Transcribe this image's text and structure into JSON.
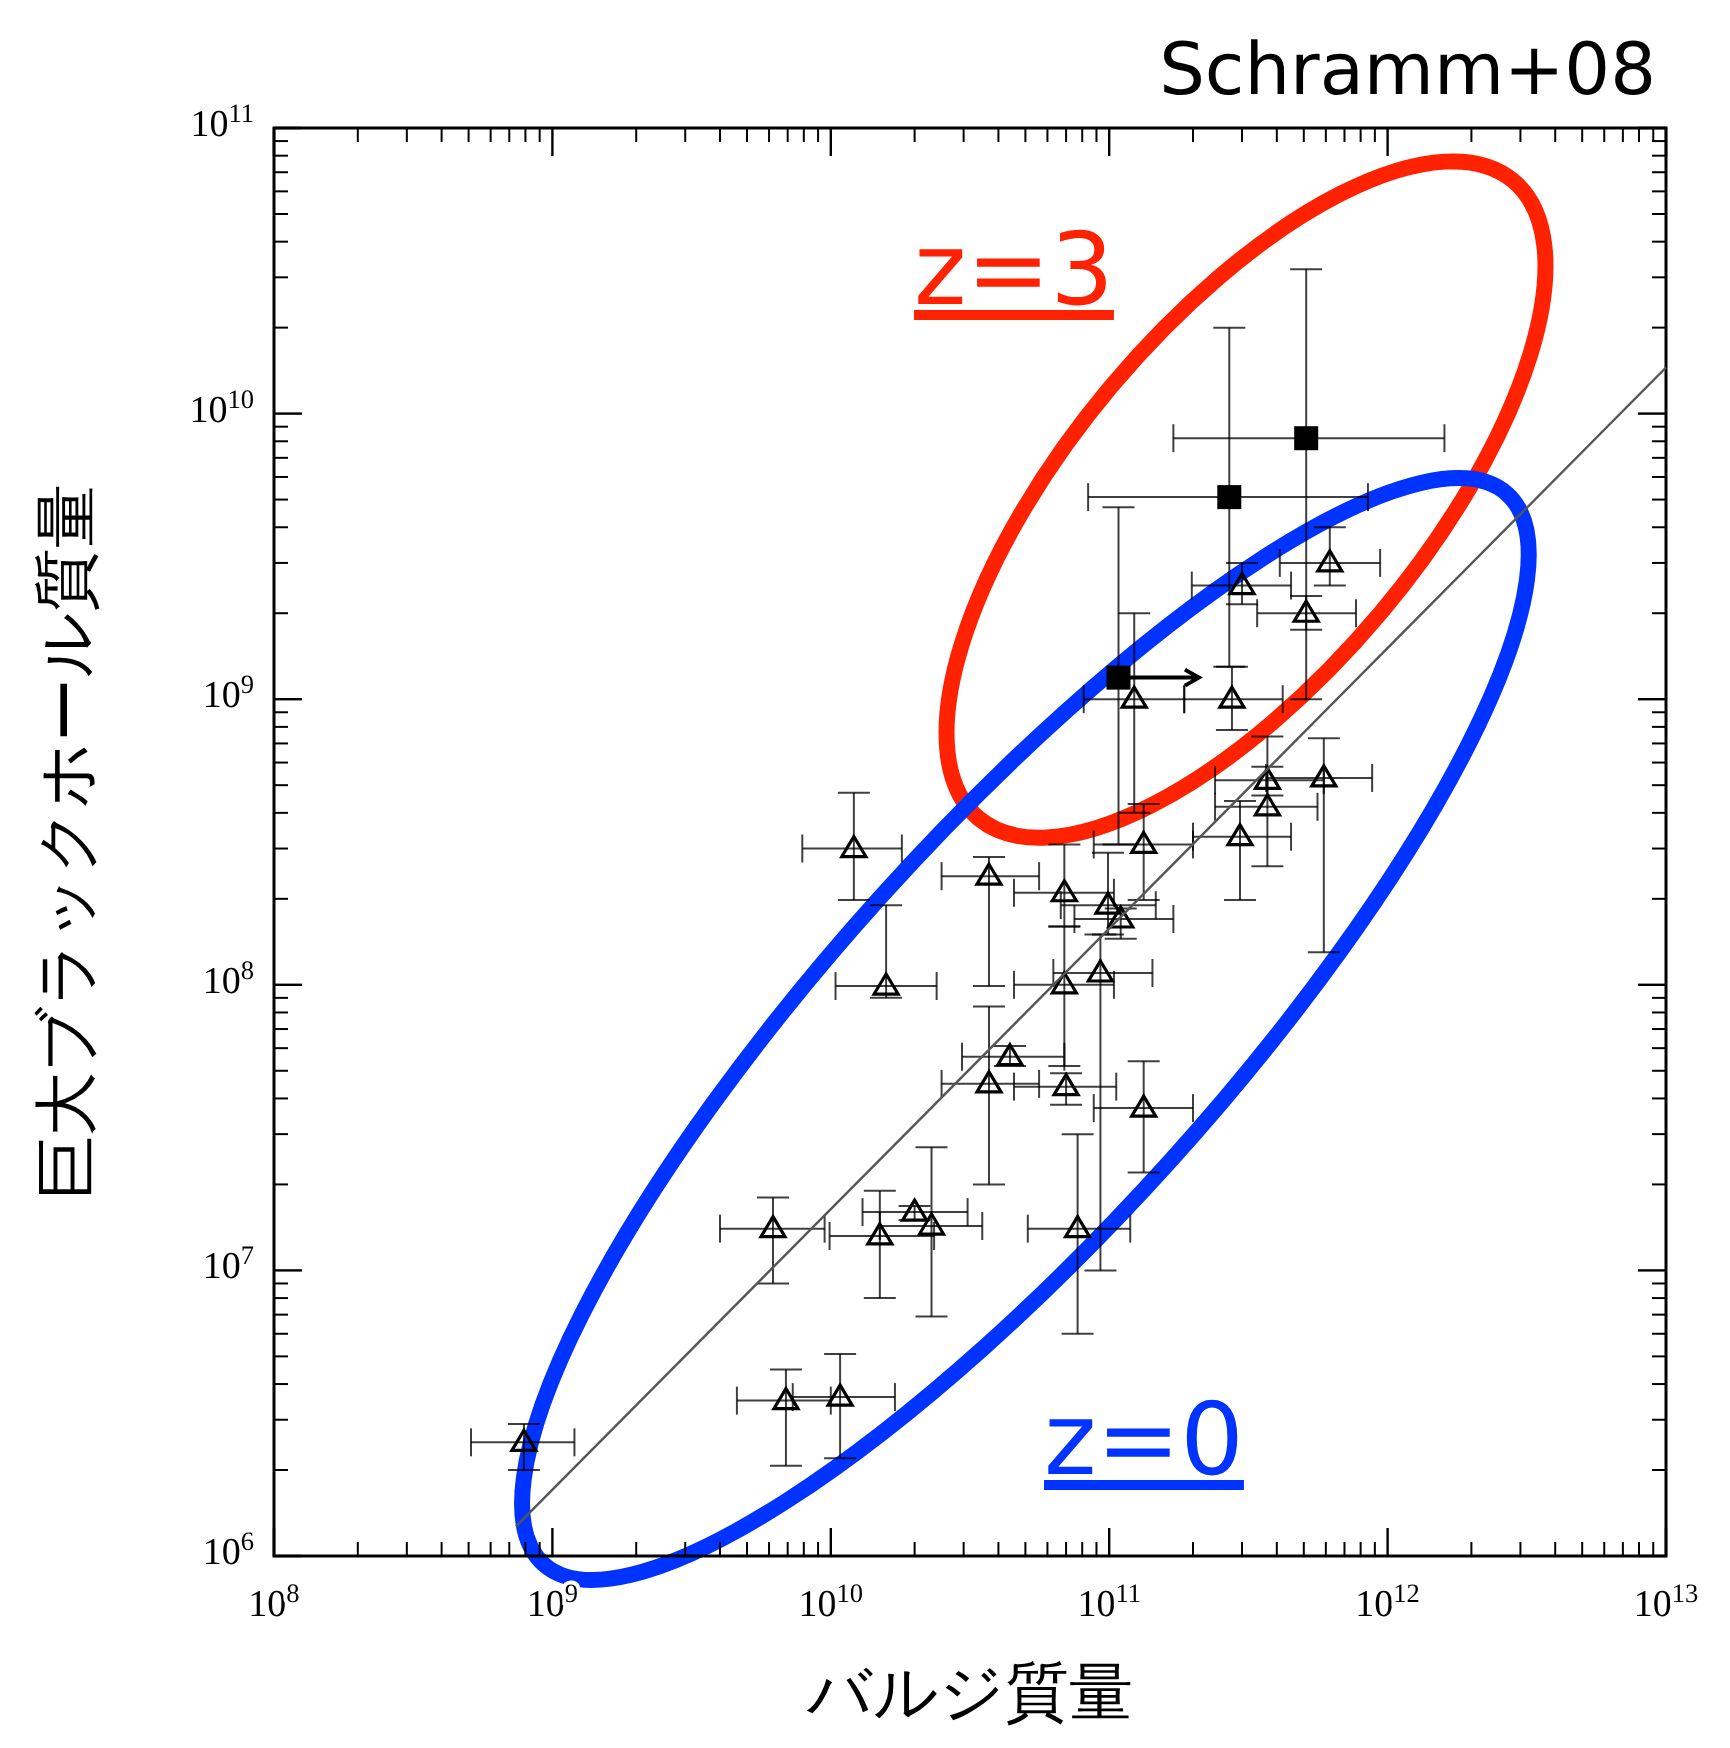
{
  "chart_data": {
    "type": "scatter",
    "title": "Schramm+08",
    "xlabel": "バルジ質量",
    "ylabel": "巨大ブラックホール質量",
    "log": "xy",
    "xlim": [
      100000000.0,
      10000000000000.0
    ],
    "ylim": [
      1000000.0,
      100000000000.0
    ],
    "xticks": [
      {
        "value": 100000000.0,
        "label": "10$^{8}$"
      },
      {
        "value": 1000000000.0,
        "label": "10$^{9}$"
      },
      {
        "value": 10000000000.0,
        "label": "10$^{10}$"
      },
      {
        "value": 100000000000.0,
        "label": "10$^{11}$"
      },
      {
        "value": 1000000000000.0,
        "label": "10$^{12}$"
      },
      {
        "value": 10000000000000.0,
        "label": "10$^{13}$"
      }
    ],
    "yticks": [
      {
        "value": 1000000.0,
        "label": "10$^{6}$"
      },
      {
        "value": 10000000.0,
        "label": "10$^{7}$"
      },
      {
        "value": 100000000.0,
        "label": "10$^{8}$"
      },
      {
        "value": 1000000000.0,
        "label": "10$^{9}$"
      },
      {
        "value": 10000000000.0,
        "label": "10$^{10}$"
      },
      {
        "value": 100000000000.0,
        "label": "10$^{11}$"
      }
    ],
    "annotations": [
      "z=3",
      "z=0"
    ],
    "series": [
      {
        "type": "scatter",
        "marker": "triangle",
        "color": "#000000",
        "x": [
          300000000000.0,
          510000000000.0,
          620000000000.0,
          276000000000.0,
          123000000000.0,
          370000000000.0,
          590000000000.0,
          370000000000.0,
          295000000000.0,
          133000000000.0,
          12100000000.0,
          37000000000.0,
          69000000000.0,
          99000000000.0,
          110000000000.0,
          69000000000.0,
          93000000000.0,
          15800000000.0,
          44000000000.0,
          37000000000.0,
          70000000000.0,
          133000000000.0,
          6200000000.0,
          20000000000.0,
          15000000000.0,
          23000000000.0,
          77000000000.0,
          6900000000.0,
          10800000000.0,
          790000000.0
        ],
        "values": [
          2500000000.0,
          2000000000.0,
          3000000000.0,
          1000000000.0,
          1000000000.0,
          520000000.0,
          530000000.0,
          420000000.0,
          330000000.0,
          310000000.0,
          300000000.0,
          240000000.0,
          210000000.0,
          190000000.0,
          170000000.0,
          100000000.0,
          110000000.0,
          99000000.0,
          56000000.0,
          45000000.0,
          44000000.0,
          37000000.0,
          14000000.0,
          16000000.0,
          13200000.0,
          14300000.0,
          14000000.0,
          3500000.0,
          3600000.0,
          2500000.0
        ],
        "xerrors": [
          [
            198000000000.0,
            450000000000.0
          ],
          [
            340000000000.0,
            770000000000.0
          ],
          [
            410000000000.0,
            940000000000.0
          ],
          [
            186000000000.0,
            420000000000.0
          ],
          [
            81000000000.0,
            186000000000.0
          ],
          [
            240000000000.0,
            590000000000.0
          ],
          [
            366000000000.0,
            880000000000.0
          ],
          [
            240000000000.0,
            560000000000.0
          ],
          [
            200000000000.0,
            450000000000.0
          ],
          [
            88000000000.0,
            200000000000.0
          ],
          [
            7900000000.0,
            18000000000.0
          ],
          [
            25000000000.0,
            56000000000.0
          ],
          [
            45500000000.0,
            104000000000.0
          ],
          [
            67000000000.0,
            147000000000.0
          ],
          [
            75000000000.0,
            170000000000.0
          ],
          [
            45500000000.0,
            104000000000.0
          ],
          [
            63000000000.0,
            143000000000.0
          ],
          [
            10400000000.0,
            24000000000.0
          ],
          [
            29600000000.0,
            69000000000.0
          ],
          [
            25000000000.0,
            56000000000.0
          ],
          [
            45500000000.0,
            106000000000.0
          ],
          [
            88000000000.0,
            200000000000.0
          ],
          [
            4000000000.0,
            9500000000.0
          ],
          [
            13000000000.0,
            31000000000.0
          ],
          [
            9900000000.0,
            23500000000.0
          ],
          [
            15000000000.0,
            35000000000.0
          ],
          [
            51000000000.0,
            119000000000.0
          ],
          [
            4600000000.0,
            10000000000.0
          ],
          [
            7300000000.0,
            17000000000.0
          ],
          [
            510000000.0,
            1200000000.0
          ]
        ],
        "errors": [
          [
            2150000000.0,
            3000000000.0
          ],
          [
            1750000000.0,
            2300000000.0
          ],
          [
            2500000000.0,
            4000000000.0
          ],
          [
            780000000.0,
            1300000000.0
          ],
          [
            400000000.0,
            2000000000.0
          ],
          [
            460000000.0,
            740000000.0
          ],
          [
            130000000.0,
            730000000.0
          ],
          [
            260000000.0,
            580000000.0
          ],
          [
            198000000.0,
            440000000.0
          ],
          [
            198000000.0,
            430000000.0
          ],
          [
            198000000.0,
            470000000.0
          ],
          [
            99000000.0,
            280000000.0
          ],
          [
            160000000.0,
            310000000.0
          ],
          [
            150000000.0,
            290000000.0
          ],
          [
            145000000.0,
            185000000.0
          ],
          [
            52000000.0,
            160000000.0
          ],
          [
            10000000.0,
            150000000.0
          ],
          [
            90000000.0,
            190000000.0
          ],
          [
            52000000.0,
            61000000.0
          ],
          [
            20000000.0,
            84000000.0
          ],
          [
            38000000.0,
            49000000.0
          ],
          [
            22000000.0,
            54000000.0
          ],
          [
            9000000.0,
            18000000.0
          ],
          [
            15000000.0,
            16800000.0
          ],
          [
            8000000.0,
            19000000.0
          ],
          [
            6900000.0,
            27000000.0
          ],
          [
            6000000.0,
            30000000.0
          ],
          [
            2070000.0,
            4500000.0
          ],
          [
            2200000.0,
            5100000.0
          ],
          [
            2000000.0,
            2900000.0
          ]
        ]
      },
      {
        "type": "scatter",
        "marker": "square",
        "color": "#000000",
        "x": [
          510000000000.0,
          270000000000.0,
          108000000000.0
        ],
        "values": [
          8200000000.0,
          5100000000.0,
          1190000000.0
        ],
        "xerrors": [
          [
            170000000000.0,
            1600000000000.0
          ],
          [
            84000000000.0,
            850000000000.0
          ],
          [
            108000000000.0,
            210000000000.0
          ]
        ],
        "errors": [
          [
            1000000000.0,
            32000000000.0
          ],
          [
            1300000000.0,
            20000000000.0
          ],
          [
            310000000.0,
            4700000000.0
          ]
        ]
      },
      {
        "type": "line",
        "color": "#555555",
        "x": [
          740000000.0,
          10000000000000.0
        ],
        "values": [
          1270000.0,
          14500000000.0
        ]
      }
    ]
  }
}
